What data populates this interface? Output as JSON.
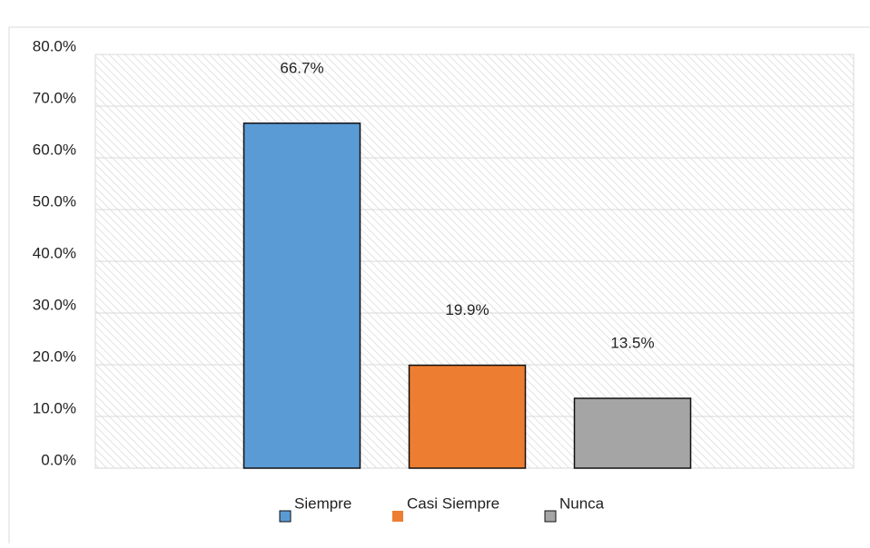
{
  "chart_data": {
    "type": "bar",
    "categories": [
      "Siempre",
      "Casi Siempre",
      "Nunca"
    ],
    "series": [
      {
        "name": "values",
        "values": [
          66.7,
          19.9,
          13.5
        ],
        "value_labels": [
          "66.7%",
          "19.9%",
          "13.5%"
        ]
      }
    ],
    "colors": [
      "#5b9bd5",
      "#ed7d31",
      "#a5a5a5"
    ],
    "ylim": [
      0,
      80
    ],
    "yticks": [
      {
        "value": 0,
        "label": "0.0%"
      },
      {
        "value": 10,
        "label": "10.0%"
      },
      {
        "value": 20,
        "label": "20.0%"
      },
      {
        "value": 30,
        "label": "30.0%"
      },
      {
        "value": 40,
        "label": "40.0%"
      },
      {
        "value": 50,
        "label": "50.0%"
      },
      {
        "value": 60,
        "label": "60.0%"
      },
      {
        "value": 70,
        "label": "70.0%"
      },
      {
        "value": 80,
        "label": "80.0%"
      }
    ],
    "grid": true,
    "legend": "bottom"
  }
}
